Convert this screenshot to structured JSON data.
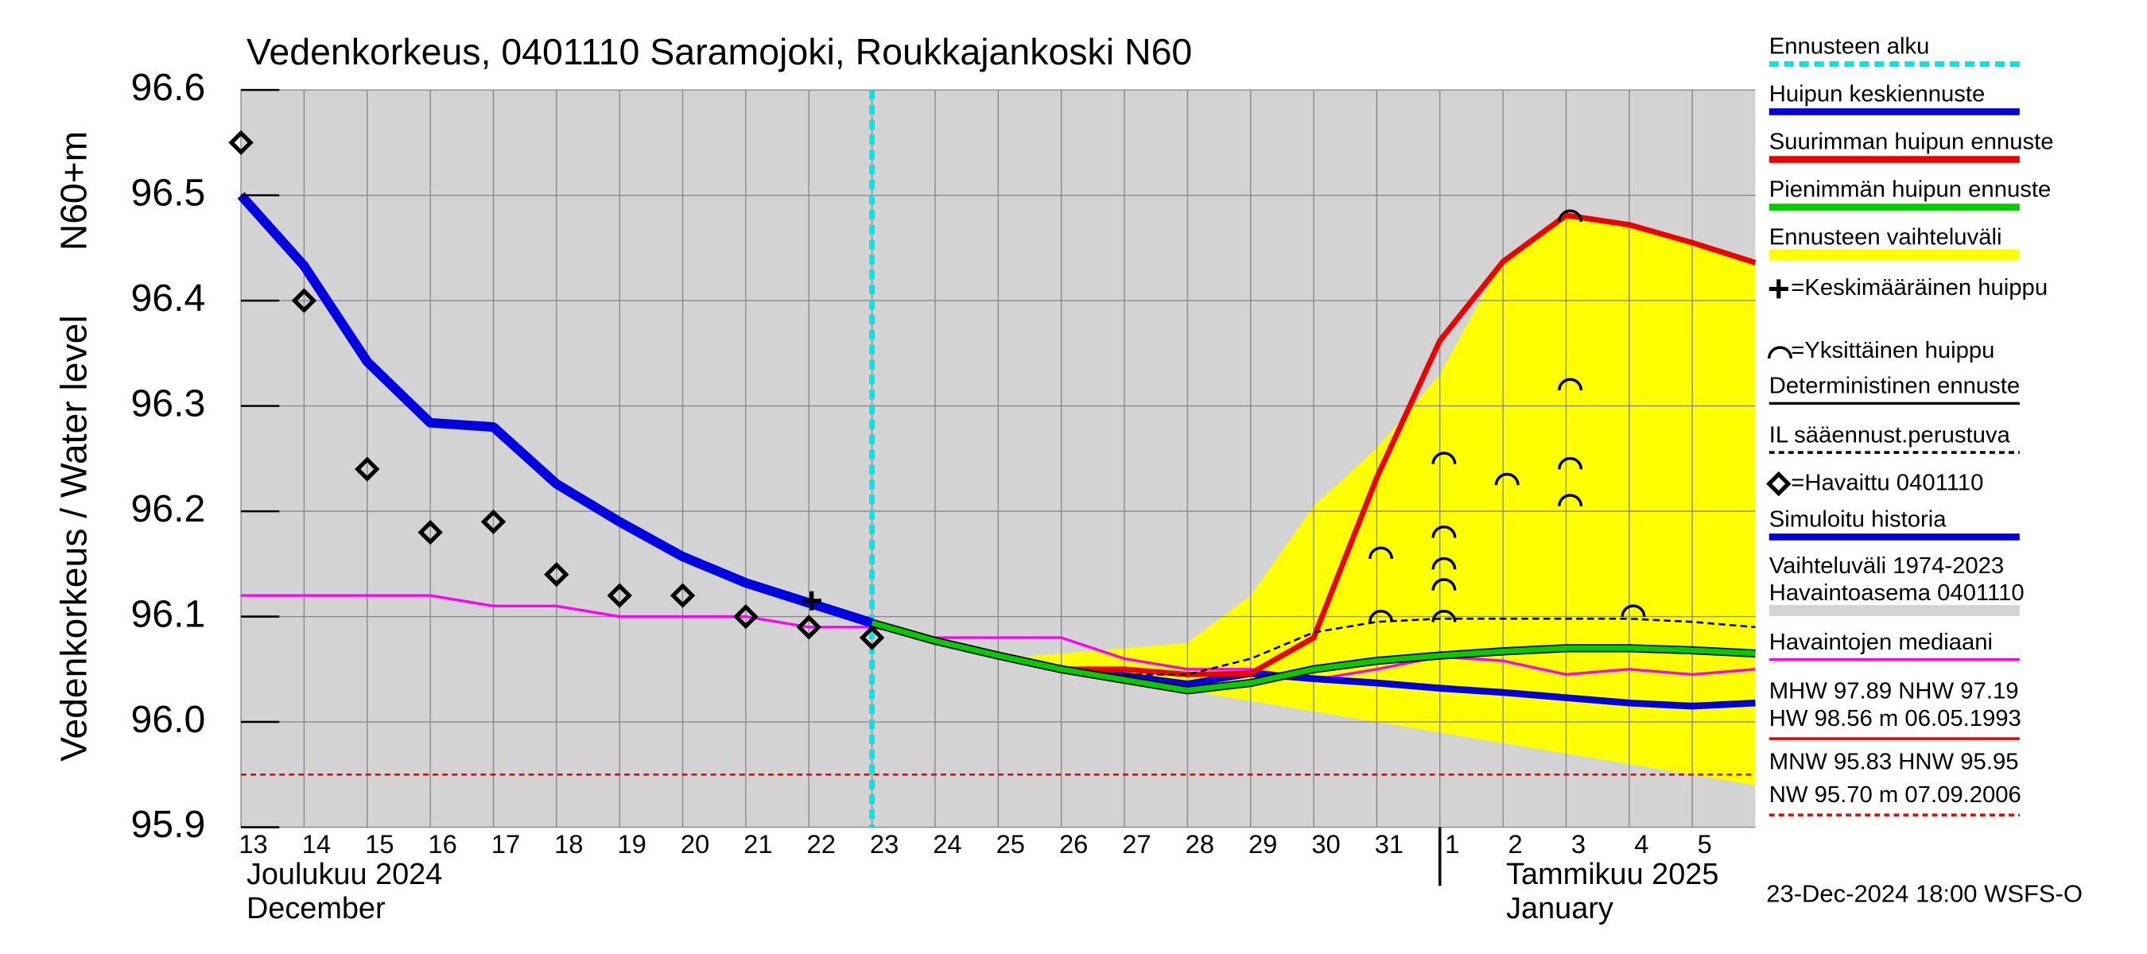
{
  "chart_data": {
    "type": "line",
    "title": "Vedenkorkeus, 0401110 Saramojoki, Roukkajankoski N60",
    "y_label": "Vedenkorkeus / Water level",
    "y_unit_label": "N60+m",
    "ylim": [
      95.9,
      96.6
    ],
    "yticks": [
      95.9,
      {
        "value": 96,
        "label": "96.0"
      },
      96.1,
      96.2,
      96.3,
      96.4,
      96.5,
      96.6
    ],
    "xlim": [
      "2024-12-13",
      "2025-01-06"
    ],
    "xticks": [
      {
        "value": "2024-12-13",
        "label": "13"
      },
      {
        "value": "2024-12-14",
        "label": "14"
      },
      {
        "value": "2024-12-15",
        "label": "15"
      },
      {
        "value": "2024-12-16",
        "label": "16"
      },
      {
        "value": "2024-12-17",
        "label": "17"
      },
      {
        "value": "2024-12-18",
        "label": "18"
      },
      {
        "value": "2024-12-19",
        "label": "19"
      },
      {
        "value": "2024-12-20",
        "label": "20"
      },
      {
        "value": "2024-12-21",
        "label": "21"
      },
      {
        "value": "2024-12-22",
        "label": "22"
      },
      {
        "value": "2024-12-23",
        "label": "23"
      },
      {
        "value": "2024-12-24",
        "label": "24"
      },
      {
        "value": "2024-12-25",
        "label": "25"
      },
      {
        "value": "2024-12-26",
        "label": "26"
      },
      {
        "value": "2024-12-27",
        "label": "27"
      },
      {
        "value": "2024-12-28",
        "label": "28"
      },
      {
        "value": "2024-12-29",
        "label": "29"
      },
      {
        "value": "2024-12-30",
        "label": "30"
      },
      {
        "value": "2024-12-31",
        "label": "31"
      },
      {
        "value": "2025-01-01",
        "label": "1"
      },
      {
        "value": "2025-01-02",
        "label": "2"
      },
      {
        "value": "2025-01-03",
        "label": "3"
      },
      {
        "value": "2025-01-04",
        "label": "4"
      },
      {
        "value": "2025-01-05",
        "label": "5"
      }
    ],
    "month_labels": [
      "Joulukuu  2024",
      "December",
      "Tammikuu  2025",
      "January"
    ],
    "grid": true,
    "series": [
      {
        "name": "Ennusteen alku",
        "kind": "vline",
        "color": "#00e5e5",
        "x": [
          "2024-12-23"
        ]
      },
      {
        "name": "Huipun keskiennuste",
        "kind": "line",
        "color": "#0000e0",
        "width": 5,
        "x": [
          "2024-12-23",
          "2024-12-24",
          "2024-12-25",
          "2024-12-26",
          "2024-12-27",
          "2024-12-28",
          "2024-12-29",
          "2024-12-30",
          "2024-12-31",
          "2025-01-01",
          "2025-01-02",
          "2025-01-03",
          "2025-01-04",
          "2025-01-05",
          "2025-01-06"
        ],
        "values": [
          96.094,
          96.077,
          96.063,
          96.05,
          96.044,
          96.036,
          96.046,
          96.041,
          96.037,
          96.032,
          96.028,
          96.023,
          96.018,
          96.015,
          96.018
        ]
      },
      {
        "name": "Suurimman huipun ennuste",
        "kind": "line",
        "color": "#ee0000",
        "width": 4,
        "x": [
          "2024-12-23",
          "2024-12-24",
          "2024-12-25",
          "2024-12-26",
          "2024-12-27",
          "2024-12-28",
          "2024-12-29",
          "2024-12-30",
          "2024-12-31",
          "2025-01-01",
          "2025-01-02",
          "2025-01-03",
          "2025-01-04",
          "2025-01-05",
          "2025-01-06"
        ],
        "values": [
          96.094,
          96.077,
          96.063,
          96.05,
          96.05,
          96.045,
          96.046,
          96.08,
          96.232,
          96.362,
          96.437,
          96.481,
          96.472,
          96.455,
          96.436
        ]
      },
      {
        "name": "Pienimmän huipun ennuste",
        "kind": "line",
        "color": "#00cc00",
        "width": 4,
        "outline": true,
        "x": [
          "2024-12-23",
          "2024-12-24",
          "2024-12-25",
          "2024-12-26",
          "2024-12-27",
          "2024-12-28",
          "2024-12-29",
          "2024-12-30",
          "2024-12-31",
          "2025-01-01",
          "2025-01-02",
          "2025-01-03",
          "2025-01-04",
          "2025-01-05",
          "2025-01-06"
        ],
        "values": [
          96.094,
          96.077,
          96.063,
          96.05,
          96.04,
          96.03,
          96.037,
          96.05,
          96.058,
          96.063,
          96.067,
          96.07,
          96.07,
          96.068,
          96.065
        ]
      },
      {
        "name": "Ennusteen vaihteluväli",
        "kind": "area",
        "color": "#ffff00",
        "x": [
          "2024-12-25",
          "2024-12-26",
          "2024-12-27",
          "2024-12-28",
          "2024-12-29",
          "2024-12-30",
          "2024-12-31",
          "2025-01-01",
          "2025-01-02",
          "2025-01-03",
          "2025-01-04",
          "2025-01-05",
          "2025-01-06"
        ],
        "upper": [
          96.06,
          96.065,
          96.07,
          96.075,
          96.12,
          96.205,
          96.26,
          96.33,
          96.44,
          96.48,
          96.47,
          96.455,
          96.435
        ],
        "lower": [
          96.06,
          96.05,
          96.04,
          96.03,
          96.02,
          96.01,
          96.0,
          95.99,
          95.98,
          95.97,
          95.96,
          95.95,
          95.94
        ]
      },
      {
        "name": "=Keskimääräinen huippu",
        "kind": "plus",
        "color": "#000000",
        "x": [
          "2024-12-22"
        ],
        "values": [
          96.115
        ]
      },
      {
        "name": "=Yksittäinen huippu",
        "kind": "arc",
        "color": "#000000",
        "x": [
          "2024-12-31",
          "2024-12-31",
          "2025-01-01",
          "2025-01-01",
          "2025-01-01",
          "2025-01-01",
          "2025-01-01",
          "2025-01-02",
          "2025-01-03",
          "2025-01-03",
          "2025-01-03",
          "2025-01-03",
          "2025-01-04"
        ],
        "values": [
          96.16,
          96.1,
          96.25,
          96.18,
          96.15,
          96.13,
          96.1,
          96.23,
          96.48,
          96.32,
          96.245,
          96.21,
          96.105
        ]
      },
      {
        "name": "Deterministinen ennuste",
        "kind": "line",
        "color": "#000000",
        "width": 2,
        "x": [],
        "values": []
      },
      {
        "name": "IL sääennust.perustuva",
        "kind": "line",
        "color": "#000000",
        "width": 1.5,
        "dashed": true,
        "x": [
          "2024-12-27",
          "2024-12-28",
          "2024-12-29",
          "2024-12-30",
          "2024-12-31",
          "2025-01-01",
          "2025-01-02",
          "2025-01-03",
          "2025-01-04",
          "2025-01-05",
          "2025-01-06"
        ],
        "values": [
          96.045,
          96.045,
          96.06,
          96.085,
          96.095,
          96.098,
          96.098,
          96.098,
          96.098,
          96.095,
          96.09
        ]
      },
      {
        "name": "=Havaittu 0401110",
        "kind": "diamond",
        "color": "#000000",
        "x": [
          "2024-12-13",
          "2024-12-14",
          "2024-12-15",
          "2024-12-16",
          "2024-12-17",
          "2024-12-18",
          "2024-12-19",
          "2024-12-20",
          "2024-12-21",
          "2024-12-22",
          "2024-12-23"
        ],
        "values": [
          96.55,
          96.4,
          96.24,
          96.18,
          96.19,
          96.14,
          96.12,
          96.12,
          96.1,
          96.09,
          96.08
        ]
      },
      {
        "name": "Simuloitu historia",
        "kind": "line",
        "color": "#0000e0",
        "width": 7,
        "x": [
          "2024-12-13",
          "2024-12-14",
          "2024-12-15",
          "2024-12-16",
          "2024-12-17",
          "2024-12-18",
          "2024-12-19",
          "2024-12-20",
          "2024-12-21",
          "2024-12-22",
          "2024-12-23"
        ],
        "values": [
          96.5,
          96.433,
          96.342,
          96.284,
          96.28,
          96.226,
          96.19,
          96.157,
          96.132,
          96.113,
          96.094
        ]
      },
      {
        "name": "Vaihteluväli 1974-2023",
        "subname": " Havaintoasema 0401110",
        "kind": "area",
        "color": "#d3d3d3",
        "x": [
          "2024-12-13",
          "2025-01-06"
        ],
        "upper": [
          96.6,
          96.6
        ],
        "lower": [
          95.9,
          95.9
        ]
      },
      {
        "name": "Havaintojen mediaani",
        "kind": "line",
        "color": "#ff00ff",
        "width": 2,
        "x": [
          "2024-12-13",
          "2024-12-14",
          "2024-12-15",
          "2024-12-16",
          "2024-12-17",
          "2024-12-18",
          "2024-12-19",
          "2024-12-20",
          "2024-12-21",
          "2024-12-22",
          "2024-12-23",
          "2024-12-24",
          "2024-12-25",
          "2024-12-26",
          "2024-12-27",
          "2024-12-28",
          "2024-12-29",
          "2024-12-30",
          "2024-12-31",
          "2025-01-01",
          "2025-01-02",
          "2025-01-03",
          "2025-01-04",
          "2025-01-05",
          "2025-01-06"
        ],
        "values": [
          96.12,
          96.12,
          96.12,
          96.12,
          96.11,
          96.11,
          96.1,
          96.1,
          96.1,
          96.09,
          96.09,
          96.08,
          96.08,
          96.08,
          96.06,
          96.05,
          96.05,
          96.04,
          96.05,
          96.062,
          96.058,
          96.045,
          96.05,
          96.045,
          96.05
        ]
      }
    ],
    "reference_levels": [
      {
        "label": "MHW  97.89 NHW  97.19",
        "label2": "HW  98.56 m 06.05.1993",
        "color": "#ee0000"
      },
      {
        "label": "MNW  95.83 HNW  95.95",
        "label2": "NW  95.70 m 07.09.2006",
        "color": "#ee0000",
        "dashed": true,
        "value": 95.95
      }
    ],
    "footer": "23-Dec-2024 18:00 WSFS-O"
  }
}
